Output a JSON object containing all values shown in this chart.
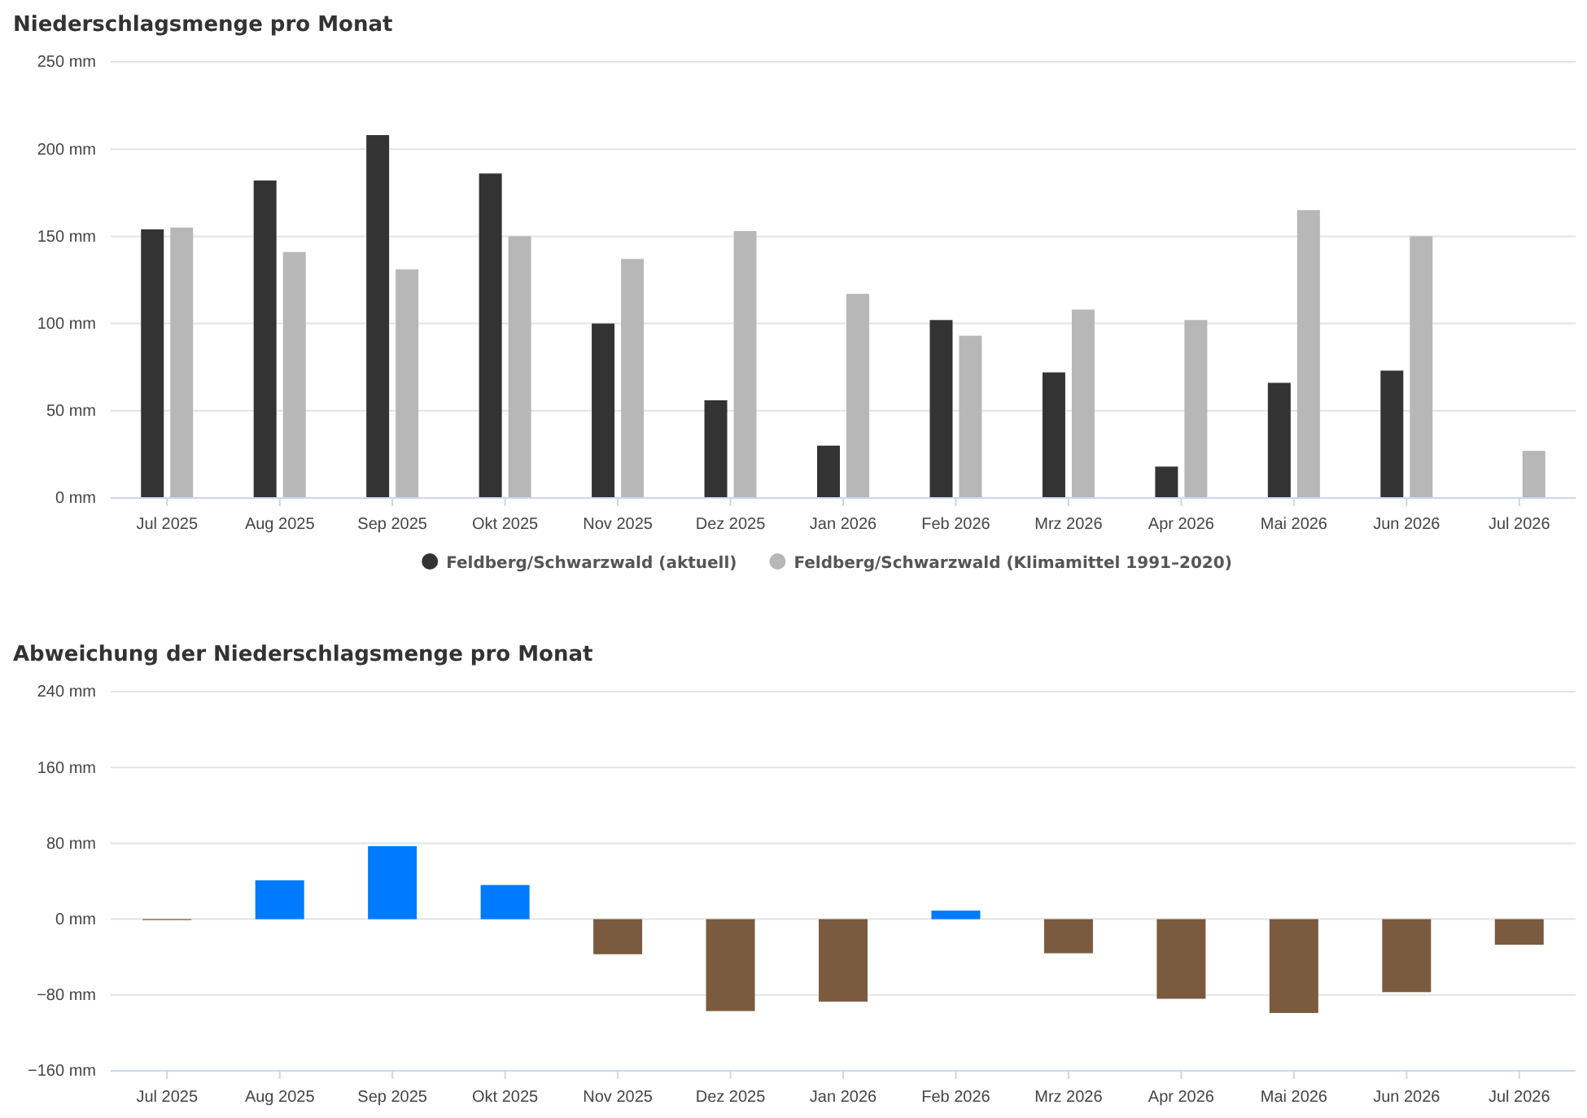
{
  "chart_data": [
    {
      "type": "bar",
      "title": "Niederschlagsmenge pro Monat",
      "categories": [
        "Jul 2025",
        "Aug 2025",
        "Sep 2025",
        "Okt 2025",
        "Nov 2025",
        "Dez 2025",
        "Jan 2026",
        "Feb 2026",
        "Mrz 2026",
        "Apr 2026",
        "Mai 2026",
        "Jun 2026",
        "Jul 2026"
      ],
      "series": [
        {
          "name": "Feldberg/Schwarzwald (aktuell)",
          "color": "#333333",
          "values": [
            154,
            182,
            208,
            186,
            100,
            56,
            30,
            102,
            72,
            18,
            66,
            73,
            0
          ]
        },
        {
          "name": "Feldberg/Schwarzwald (Klimamittel 1991–2020)",
          "color": "#b7b7b7",
          "values": [
            155,
            141,
            131,
            150,
            137,
            153,
            117,
            93,
            108,
            102,
            165,
            150,
            27
          ]
        }
      ],
      "ylim": [
        0,
        250
      ],
      "yticks": [
        {
          "value": 0,
          "label": "0 mm"
        },
        {
          "value": 50,
          "label": "50 mm"
        },
        {
          "value": 100,
          "label": "100 mm"
        },
        {
          "value": 150,
          "label": "150 mm"
        },
        {
          "value": 200,
          "label": "200 mm"
        },
        {
          "value": 250,
          "label": "250 mm"
        }
      ],
      "grid": "y",
      "legend": "bottom"
    },
    {
      "type": "bar",
      "title": "Abweichung der Niederschlagsmenge pro Monat",
      "categories": [
        "Jul 2025",
        "Aug 2025",
        "Sep 2025",
        "Okt 2025",
        "Nov 2025",
        "Dez 2025",
        "Jan 2026",
        "Feb 2026",
        "Mrz 2026",
        "Apr 2026",
        "Mai 2026",
        "Jun 2026",
        "Jul 2026"
      ],
      "values": [
        -1,
        41,
        77,
        36,
        -37,
        -97,
        -87,
        9,
        -36,
        -84,
        -99,
        -77,
        -27
      ],
      "colors": [
        "#7b5b3f",
        "#007bff",
        "#007bff",
        "#007bff",
        "#7b5b3f",
        "#7b5b3f",
        "#7b5b3f",
        "#007bff",
        "#7b5b3f",
        "#7b5b3f",
        "#7b5b3f",
        "#7b5b3f",
        "#7b5b3f"
      ],
      "ylim": [
        -160,
        240
      ],
      "yticks": [
        {
          "value": -160,
          "label": "−160 mm"
        },
        {
          "value": -80,
          "label": "−80 mm"
        },
        {
          "value": 0,
          "label": "0 mm"
        },
        {
          "value": 80,
          "label": "80 mm"
        },
        {
          "value": 160,
          "label": "160 mm"
        },
        {
          "value": 240,
          "label": "240 mm"
        }
      ],
      "grid": "y",
      "legend": false
    }
  ]
}
